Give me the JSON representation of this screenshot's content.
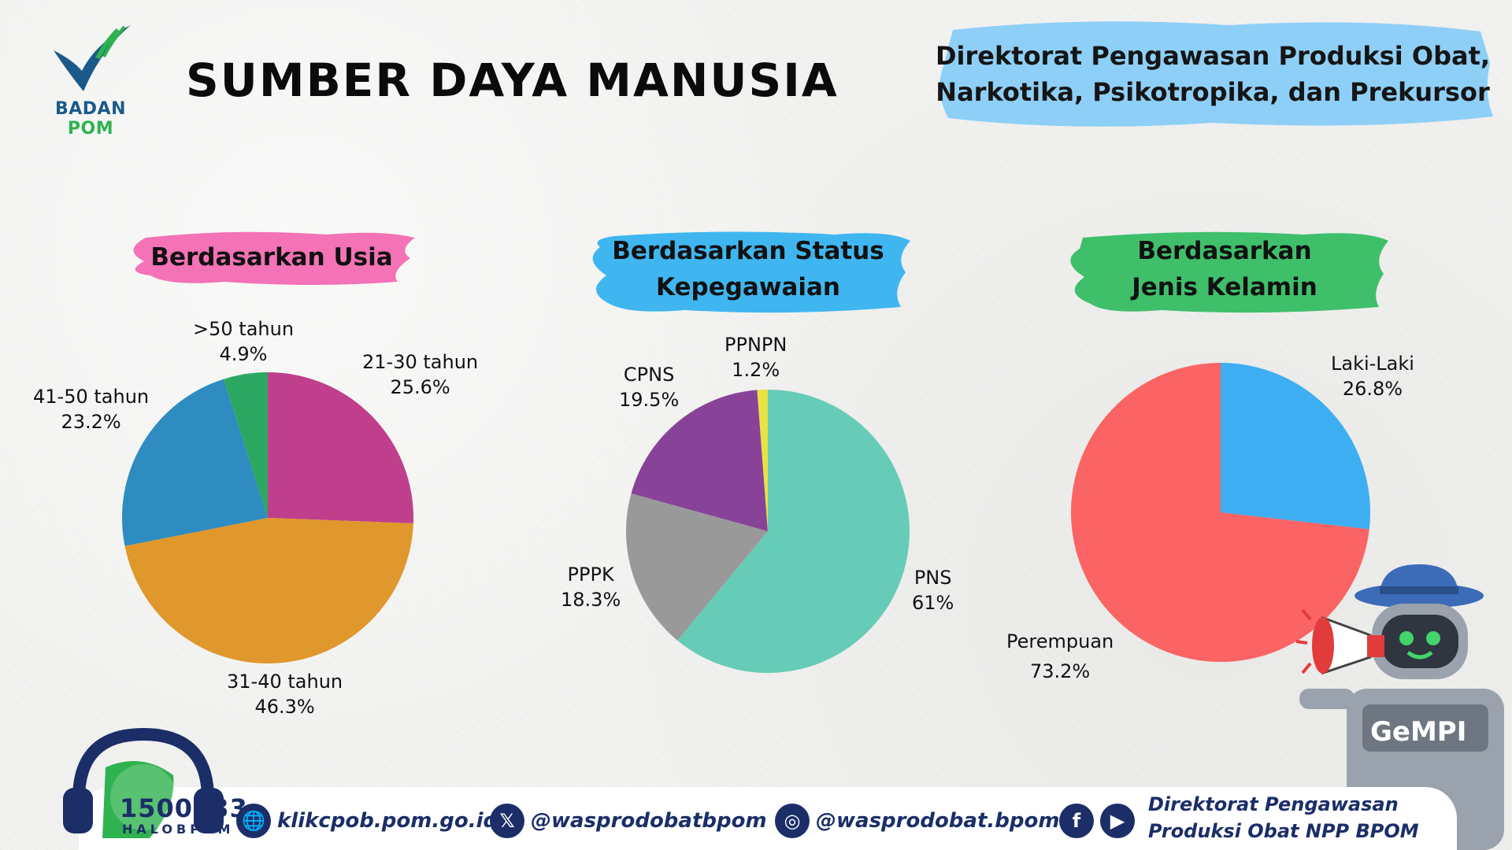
{
  "header": {
    "logo_text_a": "BADAN",
    "logo_text_b": "POM",
    "title": "SUMBER DAYA MANUSIA",
    "directorate_line1": "Direktorat Pengawasan Produksi Obat,",
    "directorate_line2": "Narkotika, Psikotropika, dan Prekursor"
  },
  "sections": {
    "usia": {
      "line1": "Berdasarkan Usia"
    },
    "status": {
      "line1": "Berdasarkan Status",
      "line2": "Kepegawaian"
    },
    "kelamin": {
      "line1": "Berdasarkan",
      "line2": "Jenis Kelamin"
    }
  },
  "chart_data": [
    {
      "type": "pie",
      "title": "Berdasarkan Usia",
      "slices": [
        {
          "label": "21-30 tahun",
          "value": 25.6,
          "display": "25.6%",
          "color": "#bf3f8c"
        },
        {
          "label": "31-40 tahun",
          "value": 46.3,
          "display": "46.3%",
          "color": "#e0972c"
        },
        {
          "label": "41-50 tahun",
          "value": 23.2,
          "display": "23.2%",
          "color": "#2e8cc0"
        },
        {
          "label": ">50 tahun",
          "value": 4.9,
          "display": "4.9%",
          "color": "#2ca862"
        }
      ]
    },
    {
      "type": "pie",
      "title": "Berdasarkan Status Kepegawaian",
      "slices": [
        {
          "label": "PNS",
          "value": 61,
          "display": "61%",
          "color": "#66ccb7"
        },
        {
          "label": "PPPK",
          "value": 18.3,
          "display": "18.3%",
          "color": "#999999"
        },
        {
          "label": "CPNS",
          "value": 19.5,
          "display": "19.5%",
          "color": "#884399"
        },
        {
          "label": "PPNPN",
          "value": 1.2,
          "display": "1.2%",
          "color": "#eae243"
        }
      ]
    },
    {
      "type": "pie",
      "title": "Berdasarkan Jenis Kelamin",
      "slices": [
        {
          "label": "Laki-Laki",
          "value": 26.8,
          "display": "26.8%",
          "color": "#3eaef3"
        },
        {
          "label": "Perempuan",
          "value": 73.2,
          "display": "73.2%",
          "color": "#fa6464"
        }
      ]
    }
  ],
  "footer": {
    "hotline_number": "1500533",
    "hotline_sub": "HALOBPOM",
    "website": "klikcpob.pom.go.id",
    "x_handle": "@wasprodobatbpom",
    "instagram": "@wasprodobat.bpom",
    "social_name_line1": "Direktorat Pengawasan",
    "social_name_line2": "Produksi Obat NPP BPOM",
    "mascot_text": "GeMPI"
  },
  "colors": {
    "usia_header": "#f472b6",
    "status_header": "#3fb6f0",
    "kelamin_header": "#3fbf6a",
    "directorate_banner": "#8ecff7",
    "footer_text": "#1b2e68"
  }
}
